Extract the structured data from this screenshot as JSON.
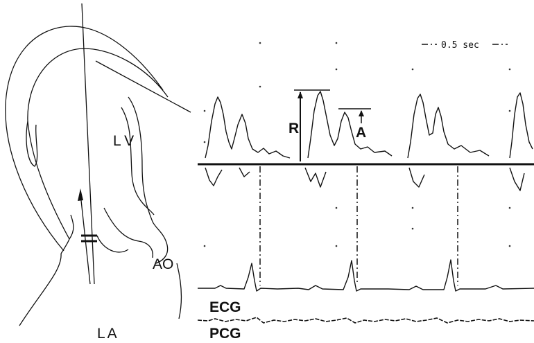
{
  "labels": {
    "lv": "LV",
    "ao": "AO",
    "la": "LA"
  },
  "doppler": {
    "scale": "0.5 sec",
    "r_wave": "R",
    "a_wave": "A"
  },
  "traces": {
    "ecg": "ECG",
    "pcg": "PCG"
  }
}
